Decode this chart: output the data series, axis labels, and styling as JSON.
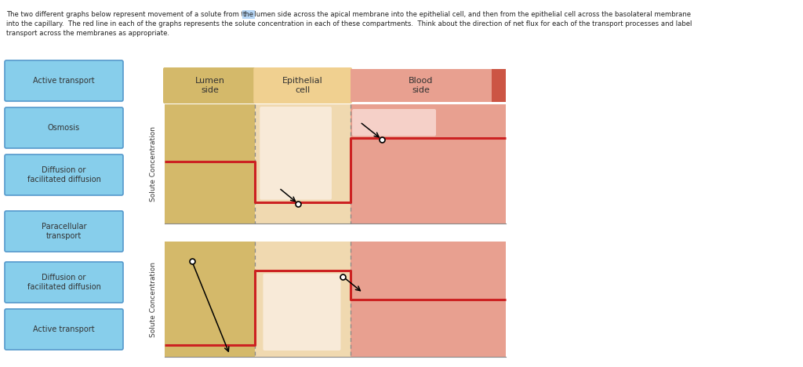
{
  "text_line1": "The two different graphs below represent movement of a solute from the lumen side across the apical membrane into the epithelial cell, and then from the epithelial cell across the basolateral membrane",
  "text_line2": "into the capillary.  The red line in each of the graphs represents the solute concentration in each of these compartments.  Think about the direction of net flux for each of the transport processes and label",
  "text_line3": "transport across the membranes as appropriate.",
  "label_box_color": "#87CEEB",
  "label_box_edge": "#5599cc",
  "lumen_color": "#d4b96a",
  "epi_color": "#f0d9a8",
  "blood_color": "#e8a090",
  "blood_stripe_color": "#cc5544",
  "g1_lumen_lvl": 0.52,
  "g1_epi_lvl": 0.18,
  "g1_blood_lvl": 0.72,
  "g2_lumen_lvl": 0.1,
  "g2_epi_lvl": 0.75,
  "g2_blood_lvl": 0.5,
  "red_line_color": "#cc2222",
  "dashed_line_color": "#777777",
  "axis_line_color": "#888888"
}
